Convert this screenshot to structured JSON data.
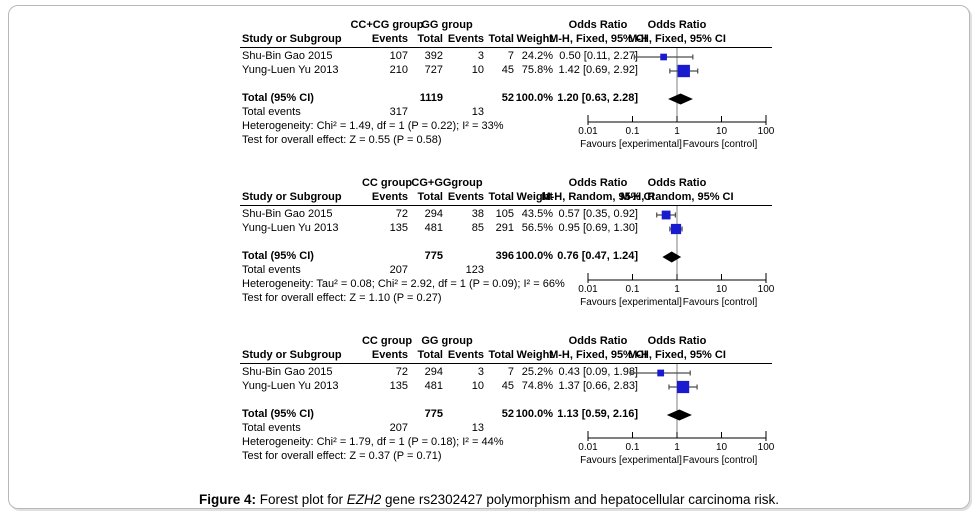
{
  "caption": {
    "label": "Figure 4:",
    "text_before_gene": " Forest plot for ",
    "gene": "EZH2",
    "text_after_gene": " gene rs2302427 polymorphism and hepatocellular carcinoma risk."
  },
  "colors": {
    "marker_blue": "#1A1ACF",
    "diamond_black": "#000000",
    "ci_line": "#4D4D4D",
    "axis": "#000000",
    "no_effect_line": "#808080",
    "frame_border": "#B8B8B8",
    "text": "#000000"
  },
  "chart_data": [
    {
      "type": "forest",
      "model": "fixed",
      "xscale": "log",
      "xlim": [
        0.01,
        100
      ],
      "headers": {
        "group1": "CC+CG group",
        "group2": "GG group",
        "study": "Study or Subgroup",
        "events": "Events",
        "total": "Total",
        "weight": "Weight",
        "or_title": "Odds Ratio",
        "method": "M-H, Fixed, 95% CI"
      },
      "studies": [
        {
          "name": "Shu-Bin Gao 2015",
          "events1": "107",
          "total1": "392",
          "events2": "3",
          "total2": "7",
          "weight": "24.2%",
          "weight_pct": 24.2,
          "or": 0.5,
          "ci_low": 0.11,
          "ci_high": 2.27,
          "or_text": "0.50 [0.11, 2.27]"
        },
        {
          "name": "Yung-Luen Yu 2013",
          "events1": "210",
          "total1": "727",
          "events2": "10",
          "total2": "45",
          "weight": "75.8%",
          "weight_pct": 75.8,
          "or": 1.42,
          "ci_low": 0.69,
          "ci_high": 2.92,
          "or_text": "1.42 [0.69, 2.92]"
        }
      ],
      "total_row": {
        "label": "Total (95% CI)",
        "total1": "1119",
        "total2": "52",
        "weight": "100.0%",
        "or": 1.2,
        "ci_low": 0.63,
        "ci_high": 2.28,
        "or_text": "1.20 [0.63, 2.28]"
      },
      "total_events_row": {
        "label": "Total events",
        "events1": "317",
        "events2": "13"
      },
      "heterogeneity": "Heterogeneity: Chi² = 1.49, df = 1 (P = 0.22); I² = 33%",
      "overall_effect": "Test for overall effect: Z = 0.55 (P = 0.58)",
      "axis": {
        "tick_values": [
          0.01,
          0.1,
          1,
          10,
          100
        ],
        "ticks": [
          "0.01",
          "0.1",
          "1",
          "10",
          "100"
        ],
        "left_label": "Favours [experimental]",
        "right_label": "Favours [control]"
      }
    },
    {
      "type": "forest",
      "model": "random",
      "xscale": "log",
      "xlim": [
        0.01,
        100
      ],
      "headers": {
        "group1": "CC group",
        "group2": "CG+GGgroup",
        "study": "Study or Subgroup",
        "events": "Events",
        "total": "Total",
        "weight": "Weight",
        "or_title": "Odds Ratio",
        "method": "M-H, Random, 95% CI"
      },
      "studies": [
        {
          "name": "Shu-Bin Gao 2015",
          "events1": "72",
          "total1": "294",
          "events2": "38",
          "total2": "105",
          "weight": "43.5%",
          "weight_pct": 43.5,
          "or": 0.57,
          "ci_low": 0.35,
          "ci_high": 0.92,
          "or_text": "0.57 [0.35, 0.92]"
        },
        {
          "name": "Yung-Luen Yu 2013",
          "events1": "135",
          "total1": "481",
          "events2": "85",
          "total2": "291",
          "weight": "56.5%",
          "weight_pct": 56.5,
          "or": 0.95,
          "ci_low": 0.69,
          "ci_high": 1.3,
          "or_text": "0.95 [0.69, 1.30]"
        }
      ],
      "total_row": {
        "label": "Total (95% CI)",
        "total1": "775",
        "total2": "396",
        "weight": "100.0%",
        "or": 0.76,
        "ci_low": 0.47,
        "ci_high": 1.24,
        "or_text": "0.76 [0.47, 1.24]"
      },
      "total_events_row": {
        "label": "Total events",
        "events1": "207",
        "events2": "123"
      },
      "heterogeneity": "Heterogeneity: Tau² = 0.08; Chi² = 2.92, df = 1 (P = 0.09); I² = 66%",
      "overall_effect": "Test for overall effect: Z = 1.10 (P = 0.27)",
      "axis": {
        "tick_values": [
          0.01,
          0.1,
          1,
          10,
          100
        ],
        "ticks": [
          "0.01",
          "0.1",
          "1",
          "10",
          "100"
        ],
        "left_label": "Favours [experimental]",
        "right_label": "Favours [control]"
      }
    },
    {
      "type": "forest",
      "model": "fixed",
      "xscale": "log",
      "xlim": [
        0.01,
        100
      ],
      "headers": {
        "group1": "CC group",
        "group2": "GG group",
        "study": "Study or Subgroup",
        "events": "Events",
        "total": "Total",
        "weight": "Weight",
        "or_title": "Odds Ratio",
        "method": "M-H, Fixed, 95% CI"
      },
      "studies": [
        {
          "name": "Shu-Bin Gao 2015",
          "events1": "72",
          "total1": "294",
          "events2": "3",
          "total2": "7",
          "weight": "25.2%",
          "weight_pct": 25.2,
          "or": 0.43,
          "ci_low": 0.09,
          "ci_high": 1.98,
          "or_text": "0.43 [0.09, 1.98]"
        },
        {
          "name": "Yung-Luen Yu 2013",
          "events1": "135",
          "total1": "481",
          "events2": "10",
          "total2": "45",
          "weight": "74.8%",
          "weight_pct": 74.8,
          "or": 1.37,
          "ci_low": 0.66,
          "ci_high": 2.83,
          "or_text": "1.37 [0.66, 2.83]"
        }
      ],
      "total_row": {
        "label": "Total (95% CI)",
        "total1": "775",
        "total2": "52",
        "weight": "100.0%",
        "or": 1.13,
        "ci_low": 0.59,
        "ci_high": 2.16,
        "or_text": "1.13 [0.59, 2.16]"
      },
      "total_events_row": {
        "label": "Total events",
        "events1": "207",
        "events2": "13"
      },
      "heterogeneity": "Heterogeneity: Chi² = 1.79, df = 1 (P = 0.18); I² = 44%",
      "overall_effect": "Test for overall effect: Z = 0.37 (P = 0.71)",
      "axis": {
        "tick_values": [
          0.01,
          0.1,
          1,
          10,
          100
        ],
        "ticks": [
          "0.01",
          "0.1",
          "1",
          "10",
          "100"
        ],
        "left_label": "Favours [experimental]",
        "right_label": "Favours [control]"
      }
    }
  ]
}
